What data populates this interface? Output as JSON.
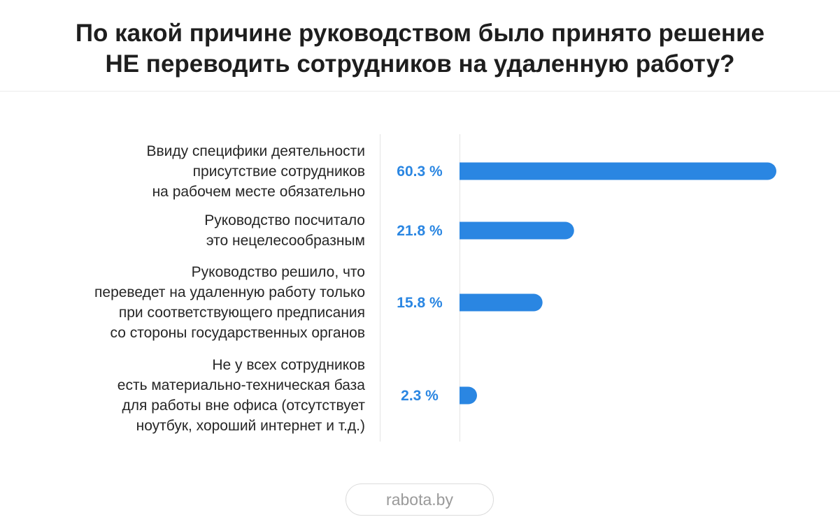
{
  "chart_data": {
    "type": "bar",
    "orientation": "horizontal",
    "title": [
      "По какой причине руководством было принято решение",
      "НЕ переводить сотрудников на удаленную работу?"
    ],
    "categories": [
      [
        "Ввиду специфики деятельности",
        "присутствие сотрудников",
        "на рабочем месте обязательно"
      ],
      [
        "Руководство посчитало",
        "это нецелесообразным"
      ],
      [
        "Руководство решило, что",
        "переведет на удаленную работу только",
        "при соответствующего предписания",
        "со стороны государственных органов"
      ],
      [
        "Не у всех сотрудников",
        "есть материально-техническая база",
        "для работы вне офиса (отсутствует",
        "ноутбук, хороший интернет и т.д.)"
      ]
    ],
    "values": [
      60.3,
      21.8,
      15.8,
      2.3
    ],
    "value_labels": [
      "60.3 %",
      "21.8 %",
      "15.8 %",
      "2.3 %"
    ],
    "unit": "%",
    "xlim": [
      0,
      60.3
    ],
    "grid": false,
    "bar_color": "#2a86e2",
    "value_label_color": "#2a86e2"
  },
  "footer": {
    "source": "rabota.by"
  }
}
